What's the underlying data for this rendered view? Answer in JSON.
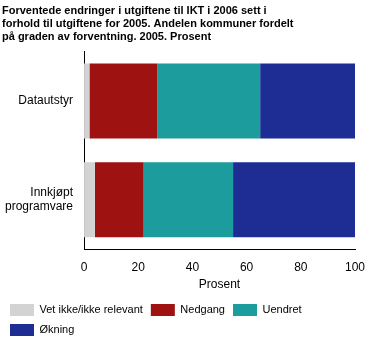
{
  "chart_data": {
    "type": "bar",
    "orientation": "horizontal",
    "stacked": true,
    "title": [
      "Forventede endringer i utgiftene til IKT i 2006 sett i",
      "forhold til utgiftene for 2005. Andelen kommuner fordelt",
      "på graden av forventning. 2005. Prosent"
    ],
    "x_label": "Prosent",
    "categories": [
      "Datautstyr",
      "Innkjøpt programvare"
    ],
    "series": [
      {
        "name": "Vet ikke/ikke relevant",
        "color": "#d3d3d3",
        "values": [
          2,
          4
        ]
      },
      {
        "name": "Nedgang",
        "color": "#9e1212",
        "values": [
          25,
          18
        ]
      },
      {
        "name": "Uendret",
        "color": "#1c9c9c",
        "values": [
          38,
          33
        ]
      },
      {
        "name": "Økning",
        "color": "#1e2d94",
        "values": [
          35,
          45
        ]
      }
    ],
    "xlim": [
      0,
      100
    ],
    "xticks": [
      0,
      20,
      40,
      60,
      80,
      100
    ],
    "grid": false,
    "legend": "bottom"
  }
}
